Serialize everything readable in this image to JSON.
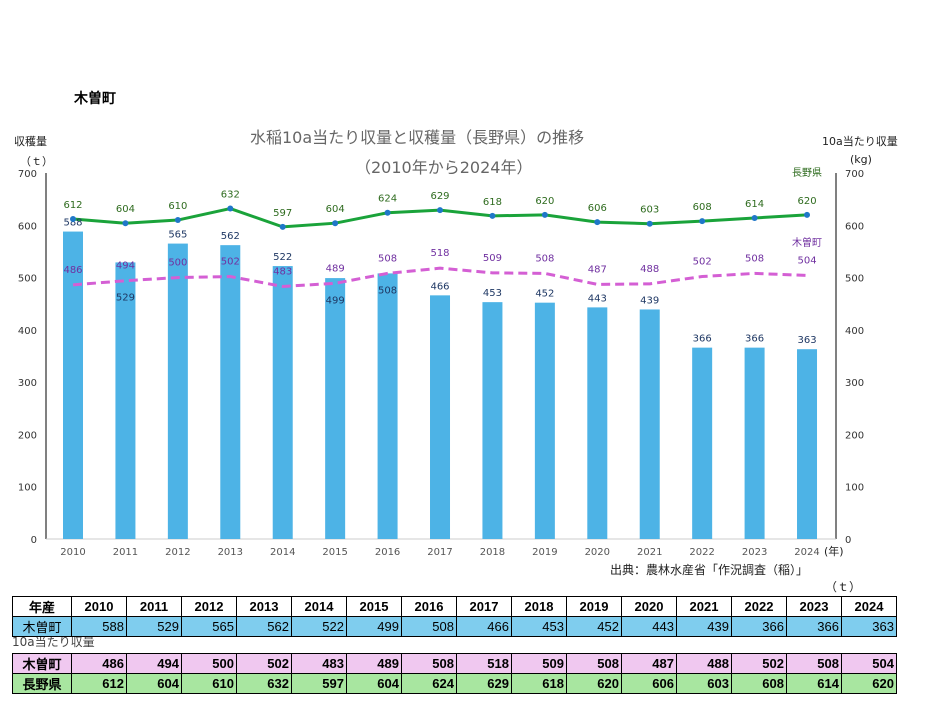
{
  "header": {
    "town": "木曽町"
  },
  "chart_data": {
    "type": "bar+line",
    "title": "水稲10a当たり収量と収穫量（長野県）の推移",
    "subtitle": "（2010年から2024年）",
    "y_left_label": "収穫量",
    "y_left_unit": "（ｔ）",
    "y_right_label": "10a当たり収量",
    "y_right_unit": "(kg)",
    "x_unit": "(年)",
    "ylim_left": [
      0,
      700
    ],
    "ylim_right": [
      0,
      700
    ],
    "ticks": [
      0,
      100,
      200,
      300,
      400,
      500,
      600,
      700
    ],
    "categories": [
      "2010",
      "2011",
      "2012",
      "2013",
      "2014",
      "2015",
      "2016",
      "2017",
      "2018",
      "2019",
      "2020",
      "2021",
      "2022",
      "2023",
      "2024"
    ],
    "series": [
      {
        "name": "木曽町",
        "kind": "bar",
        "axis": "left",
        "color": "#4db3e6",
        "values": [
          588,
          529,
          565,
          562,
          522,
          499,
          508,
          466,
          453,
          452,
          443,
          439,
          366,
          366,
          363
        ]
      },
      {
        "name": "長野県",
        "kind": "line",
        "axis": "right",
        "color": "#1aa33a",
        "values": [
          612,
          604,
          610,
          632,
          597,
          604,
          624,
          629,
          618,
          620,
          606,
          603,
          608,
          614,
          620
        ]
      },
      {
        "name": "木曽町",
        "kind": "dashed-line",
        "axis": "right",
        "color": "#d45fd4",
        "values": [
          486,
          494,
          500,
          502,
          483,
          489,
          508,
          518,
          509,
          508,
          487,
          488,
          502,
          508,
          504
        ]
      }
    ],
    "grid": false,
    "source": "出典：農林水産省「作況調査（稲）」"
  },
  "table": {
    "unit": "（ｔ）",
    "header_label": "年産",
    "harvest_row_label": "木曽町",
    "yield_caption": "10a当たり収量",
    "yield_rows": [
      "木曽町",
      "長野県"
    ]
  }
}
